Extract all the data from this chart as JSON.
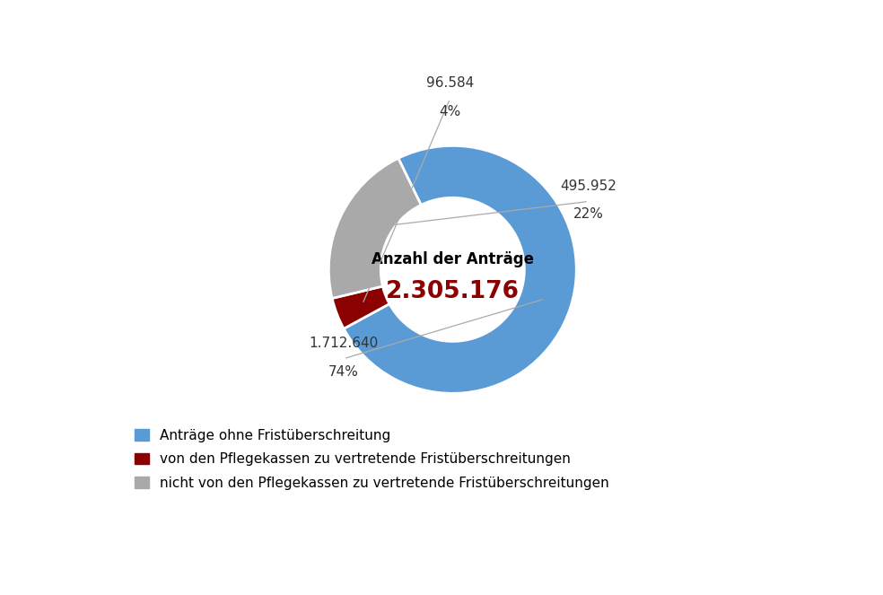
{
  "values": [
    1712640,
    96584,
    495952
  ],
  "labels": [
    "Anträge ohne Fristüberschreitung",
    "von den Pflegekassen zu vertretende Fristüberschreitungen",
    "nicht von den Pflegekassen zu vertretende Fristüberschreitungen"
  ],
  "colors": [
    "#5B9BD5",
    "#8B0000",
    "#A9A9A9"
  ],
  "display_values": [
    "1.712.640",
    "96.584",
    "495.952"
  ],
  "display_pcts": [
    "74%",
    "4%",
    "22%"
  ],
  "center_label": "Anzahl der Anträge",
  "center_value": "2.305.176",
  "center_label_color": "#000000",
  "center_value_color": "#8B0000",
  "background_color": "#ffffff",
  "annotation_line_color": "#aaaaaa",
  "start_angle": 116,
  "donut_width": 0.42
}
